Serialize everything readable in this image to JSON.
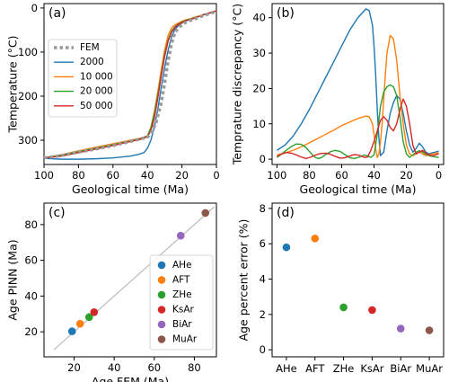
{
  "chart_data": [
    {
      "panel": "(a)",
      "type": "line",
      "xlabel": "Geological time (Ma)",
      "ylabel": "Temperature (°C)",
      "xlim": [
        100,
        0
      ],
      "ylim": [
        355,
        -10
      ],
      "xticks": [
        100,
        80,
        60,
        40,
        20,
        0
      ],
      "yticks": [
        0,
        100,
        200,
        300
      ],
      "legend_position": "left",
      "series": [
        {
          "name": "FEM",
          "color": "#999999",
          "dashed": true,
          "x": [
            100,
            90,
            80,
            70,
            60,
            50,
            45,
            40,
            38,
            35,
            32,
            30,
            28,
            26,
            24,
            22,
            20,
            18,
            15,
            12,
            10,
            8,
            5,
            2,
            0
          ],
          "y": [
            340,
            335,
            327,
            320,
            312,
            303,
            298,
            293,
            285,
            260,
            215,
            170,
            120,
            80,
            55,
            45,
            38,
            33,
            28,
            24,
            21,
            18,
            14,
            10,
            7
          ]
        },
        {
          "name": "2000",
          "color": "#1f77b4",
          "x": [
            100,
            90,
            80,
            70,
            60,
            50,
            45,
            42,
            40,
            38,
            36,
            34,
            32,
            30,
            28,
            26,
            24,
            22,
            20,
            18,
            15,
            12,
            10,
            8,
            5,
            2,
            0
          ],
          "y": [
            341,
            343,
            343,
            342,
            340,
            336,
            332,
            328,
            318,
            300,
            270,
            230,
            180,
            135,
            95,
            65,
            48,
            40,
            34,
            30,
            26,
            22,
            19,
            16,
            13,
            9,
            6
          ]
        },
        {
          "name": "10 000",
          "color": "#ff7f0e",
          "x": [
            100,
            90,
            80,
            70,
            60,
            50,
            45,
            42,
            40,
            38,
            36,
            34,
            32,
            30,
            28,
            26,
            24,
            22,
            20,
            18,
            15,
            12,
            10,
            8,
            5,
            2,
            0
          ],
          "y": [
            340,
            333,
            324,
            316,
            308,
            300,
            296,
            293,
            290,
            270,
            235,
            190,
            140,
            95,
            62,
            45,
            38,
            34,
            30,
            27,
            24,
            20,
            18,
            15,
            12,
            9,
            6
          ]
        },
        {
          "name": "20 000",
          "color": "#2ca02c",
          "x": [
            100,
            90,
            80,
            70,
            60,
            50,
            45,
            42,
            40,
            38,
            36,
            34,
            32,
            30,
            28,
            26,
            24,
            22,
            20,
            18,
            15,
            12,
            10,
            8,
            5,
            2,
            0
          ],
          "y": [
            340,
            334,
            326,
            318,
            310,
            302,
            298,
            294,
            290,
            272,
            240,
            198,
            150,
            105,
            72,
            52,
            42,
            36,
            32,
            28,
            25,
            21,
            19,
            16,
            12,
            9,
            6
          ]
        },
        {
          "name": "50 000",
          "color": "#d62728",
          "x": [
            100,
            90,
            80,
            70,
            60,
            50,
            45,
            42,
            40,
            38,
            36,
            34,
            32,
            30,
            28,
            26,
            24,
            22,
            20,
            18,
            15,
            12,
            10,
            8,
            5,
            2,
            0
          ],
          "y": [
            340,
            336,
            328,
            320,
            312,
            303,
            299,
            295,
            292,
            278,
            250,
            205,
            155,
            110,
            75,
            55,
            44,
            37,
            33,
            29,
            26,
            22,
            19,
            16,
            12,
            9,
            6
          ]
        }
      ]
    },
    {
      "panel": "(b)",
      "type": "line",
      "xlabel": "Geological time (Ma)",
      "ylabel": "Temprature discrepancy (°C)",
      "xlim": [
        103,
        -3
      ],
      "ylim": [
        -1.5,
        44
      ],
      "xticks": [
        100,
        80,
        60,
        40,
        20,
        0
      ],
      "yticks": [
        0,
        10,
        20,
        30,
        40
      ],
      "series": [
        {
          "name": "2000",
          "color": "#1f77b4",
          "x": [
            100,
            95,
            90,
            85,
            80,
            75,
            70,
            65,
            60,
            55,
            50,
            45,
            43,
            41,
            40,
            39,
            38,
            37,
            36,
            34,
            32,
            30,
            28,
            26,
            24,
            22,
            20,
            18,
            16,
            14,
            12,
            10,
            8,
            6,
            4,
            2,
            0
          ],
          "y": [
            2.5,
            4,
            6.5,
            10,
            14,
            18.5,
            23,
            27.5,
            32,
            36.5,
            40,
            42.5,
            42,
            38,
            32,
            24,
            14,
            6,
            1,
            2,
            8,
            13,
            16,
            18,
            17,
            13,
            8,
            4,
            2,
            3,
            4.5,
            3.5,
            2,
            1.5,
            1.8,
            2,
            2.3
          ]
        },
        {
          "name": "10 000",
          "color": "#ff7f0e",
          "x": [
            100,
            95,
            90,
            85,
            80,
            75,
            70,
            65,
            60,
            55,
            50,
            45,
            43,
            41,
            40,
            39,
            38,
            37,
            36,
            35,
            34,
            33,
            32,
            30,
            28,
            26,
            24,
            22,
            20,
            18,
            16,
            14,
            12,
            10,
            8,
            6,
            4,
            2,
            0
          ],
          "y": [
            1.2,
            1.8,
            2.5,
            3.5,
            4.6,
            5.8,
            7,
            8.2,
            9.5,
            10.5,
            11.5,
            12.2,
            12,
            10,
            7,
            3,
            0.5,
            1.5,
            5,
            10,
            17,
            24,
            30,
            35,
            34,
            28,
            18,
            10,
            4,
            1.5,
            1,
            1.5,
            2,
            1.5,
            1,
            1.2,
            1.5,
            1.6,
            1.8
          ]
        },
        {
          "name": "20 000",
          "color": "#2ca02c",
          "x": [
            100,
            97,
            94,
            91,
            88,
            85,
            82,
            80,
            78,
            76,
            74,
            72,
            70,
            67,
            64,
            61,
            58,
            55,
            52,
            49,
            46,
            44,
            42,
            40,
            38,
            36,
            34,
            32,
            30,
            28,
            26,
            24,
            22,
            20,
            18,
            16,
            14,
            12,
            10,
            8,
            6,
            4,
            2,
            0
          ],
          "y": [
            0.5,
            1.5,
            2.6,
            3.6,
            4.3,
            4.2,
            3.3,
            2.2,
            1.2,
            0.4,
            0.2,
            0.6,
            1.3,
            2.1,
            2.5,
            2.2,
            1.3,
            0.4,
            0.2,
            0.6,
            1.2,
            0.9,
            0.5,
            1.2,
            7,
            15,
            19,
            20.5,
            21,
            20.5,
            18,
            12,
            5,
            1.5,
            0.5,
            1.2,
            2,
            2.4,
            2,
            1.4,
            1,
            0.8,
            0.6,
            0.5
          ]
        },
        {
          "name": "50 000",
          "color": "#d62728",
          "x": [
            100,
            97,
            94,
            91,
            88,
            85,
            82,
            79,
            76,
            73,
            70,
            67,
            64,
            61,
            58,
            55,
            52,
            49,
            46,
            44,
            42,
            40,
            38,
            36,
            34,
            32,
            30,
            28,
            26,
            24,
            22,
            20,
            18,
            16,
            14,
            12,
            10,
            8,
            6,
            4,
            2,
            0
          ],
          "y": [
            0.8,
            1.5,
            1.9,
            1.7,
            1.2,
            0.6,
            0.2,
            0.6,
            1.2,
            1.6,
            1.7,
            1.4,
            0.8,
            0.3,
            0.4,
            0.9,
            1.3,
            1.1,
            0.5,
            0.6,
            2.5,
            5,
            8,
            11,
            12,
            11,
            9,
            8,
            10,
            14,
            17,
            15,
            10,
            4,
            1.5,
            2,
            2.5,
            1.8,
            1.2,
            1,
            1.2,
            1.5
          ]
        }
      ]
    },
    {
      "panel": "(c)",
      "type": "scatter",
      "xlabel": "Age FEM (Ma)",
      "ylabel": "Age PINN (Ma)",
      "xlim": [
        5,
        91
      ],
      "ylim": [
        6,
        92
      ],
      "xticks": [
        20,
        40,
        60,
        80
      ],
      "yticks": [
        20,
        40,
        60,
        80
      ],
      "reference_line": {
        "x": [
          10,
          90
        ],
        "y": [
          10,
          90
        ],
        "color": "#c0c0c0"
      },
      "legend_position": "lower-right",
      "points": [
        {
          "name": "AHe",
          "x": 19.0,
          "y": 20.3,
          "color": "#1f77b4"
        },
        {
          "name": "AFT",
          "x": 23.0,
          "y": 24.5,
          "color": "#ff7f0e"
        },
        {
          "name": "ZHe",
          "x": 27.5,
          "y": 28.2,
          "color": "#2ca02c"
        },
        {
          "name": "KsAr",
          "x": 30.0,
          "y": 31.0,
          "color": "#d62728"
        },
        {
          "name": "BiAr",
          "x": 73.2,
          "y": 73.8,
          "color": "#9467bd"
        },
        {
          "name": "MuAr",
          "x": 85.5,
          "y": 86.5,
          "color": "#8c564b"
        }
      ]
    },
    {
      "panel": "(d)",
      "type": "scatter",
      "xlabel": "",
      "ylabel": "Age percent error (%)",
      "categories": [
        "AHe",
        "AFT",
        "ZHe",
        "KsAr",
        "BiAr",
        "MuAr"
      ],
      "ylim": [
        -0.4,
        8.3
      ],
      "yticks": [
        0,
        2,
        4,
        6,
        8
      ],
      "values": [
        5.8,
        6.3,
        2.4,
        2.25,
        1.2,
        1.1
      ],
      "colors": [
        "#1f77b4",
        "#ff7f0e",
        "#2ca02c",
        "#d62728",
        "#9467bd",
        "#8c564b"
      ]
    }
  ]
}
